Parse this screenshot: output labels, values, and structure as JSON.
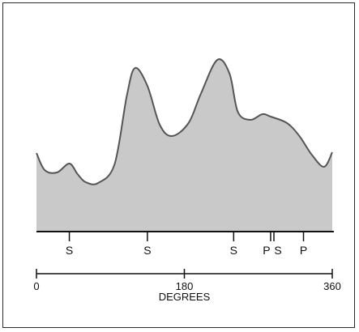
{
  "chart_data": {
    "type": "area",
    "title": "",
    "xlabel": "DEGREES",
    "ylabel": "",
    "xlim": [
      0,
      360
    ],
    "x_ticks": [
      {
        "value": 0,
        "label": "0"
      },
      {
        "value": 180,
        "label": "180"
      },
      {
        "value": 360,
        "label": "360"
      }
    ],
    "curve": {
      "x": [
        0,
        10,
        25,
        40,
        50,
        60,
        75,
        95,
        110,
        120,
        135,
        150,
        165,
        185,
        200,
        220,
        235,
        245,
        260,
        275,
        285,
        305,
        320,
        335,
        350,
        360
      ],
      "y": [
        97,
        76,
        73,
        84,
        71,
        61,
        60,
        83,
        168,
        202,
        180,
        132,
        118,
        134,
        170,
        212,
        195,
        148,
        138,
        145,
        142,
        134,
        118,
        95,
        80,
        98
      ]
    },
    "ylim": [
      0,
      230
    ],
    "markers": [
      {
        "x": 40,
        "label": "S"
      },
      {
        "x": 135,
        "label": "S"
      },
      {
        "x": 240,
        "label": "S"
      },
      {
        "x": 285,
        "label": "P"
      },
      {
        "x": 289,
        "label": "S"
      },
      {
        "x": 325,
        "label": "P"
      }
    ],
    "colors": {
      "fill": "#c9c9c9",
      "stroke": "#555555",
      "axis": "#111111",
      "frame": "#2a2a2a"
    }
  }
}
